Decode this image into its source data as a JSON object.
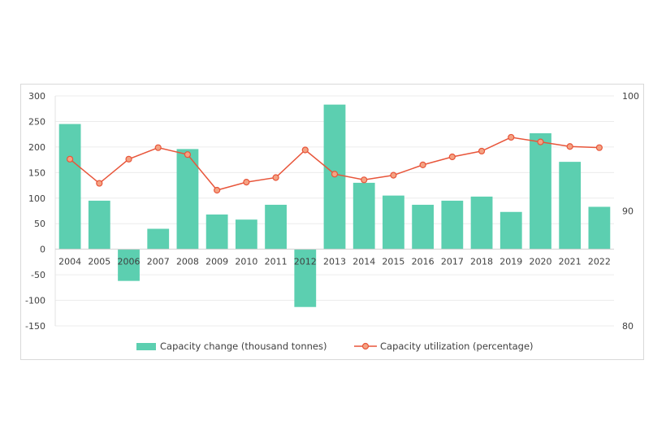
{
  "chart_data": {
    "type": "bar+line",
    "categories": [
      "2004",
      "2005",
      "2006",
      "2007",
      "2008",
      "2009",
      "2010",
      "2011",
      "2012",
      "2013",
      "2014",
      "2015",
      "2016",
      "2017",
      "2018",
      "2019",
      "2020",
      "2021",
      "2022"
    ],
    "series": [
      {
        "name": "Capacity change (thousand tonnes)",
        "type": "bar",
        "axis": "left",
        "color": "#5ccfb0",
        "values": [
          245,
          95,
          -62,
          40,
          196,
          68,
          58,
          87,
          -113,
          283,
          130,
          105,
          87,
          95,
          103,
          73,
          227,
          171,
          83
        ]
      },
      {
        "name": "Capacity utilization (percentage)",
        "type": "line",
        "axis": "right",
        "color": "#e8553a",
        "marker_fill": "#f4a383",
        "values": [
          94.5,
          92.4,
          94.5,
          95.5,
          94.9,
          91.8,
          92.5,
          92.9,
          95.3,
          93.2,
          92.7,
          93.1,
          94.0,
          94.7,
          95.2,
          96.4,
          96.0,
          95.6,
          95.5
        ]
      }
    ],
    "y_left": {
      "ylim": [
        -150,
        300
      ],
      "ticks": [
        300,
        250,
        200,
        150,
        100,
        50,
        0,
        -50,
        -100,
        -150
      ]
    },
    "y_right": {
      "ylim": [
        80,
        100
      ],
      "ticks": [
        100,
        90,
        80
      ]
    },
    "grid": true,
    "legend_position": "bottom"
  }
}
